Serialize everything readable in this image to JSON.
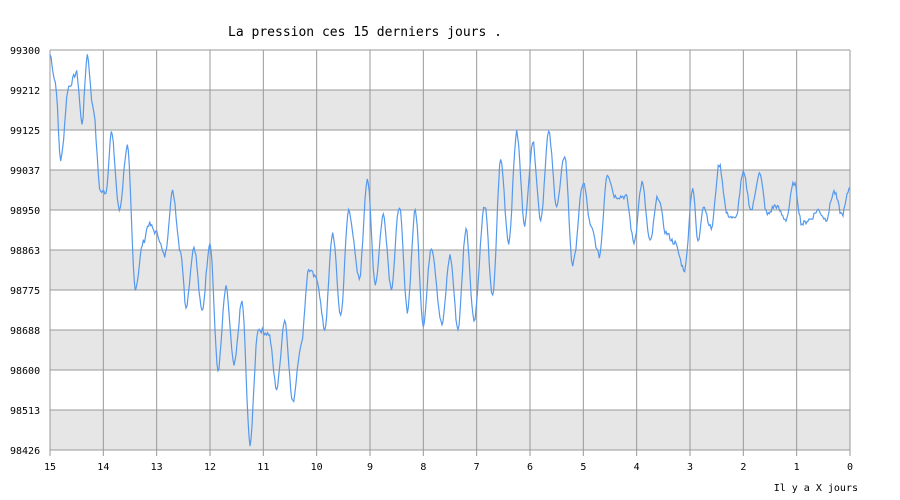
{
  "chart_data": {
    "type": "line",
    "title": "La pression ces 15 derniers jours .",
    "xlabel": "Il y a X jours",
    "ylabel": "",
    "xlim": [
      15,
      0
    ],
    "ylim": [
      98426,
      99300
    ],
    "x_ticks": [
      "15",
      "14",
      "13",
      "12",
      "11",
      "10",
      "9",
      "8",
      "7",
      "6",
      "5",
      "4",
      "3",
      "2",
      "1",
      "0"
    ],
    "y_ticks": [
      "99300",
      "99212",
      "99125",
      "99037",
      "98950",
      "98863",
      "98775",
      "98688",
      "98600",
      "98513",
      "98426"
    ],
    "grid": true,
    "line_color": "#5599ee",
    "band_color": "#e6e6e6",
    "series": [
      {
        "name": "",
        "x": [
          15.0,
          14.9,
          14.8,
          14.65,
          14.5,
          14.4,
          14.3,
          14.2,
          14.05,
          13.95,
          13.85,
          13.7,
          13.55,
          13.4,
          13.25,
          13.15,
          13.0,
          12.85,
          12.7,
          12.55,
          12.45,
          12.3,
          12.15,
          12.0,
          11.85,
          11.7,
          11.55,
          11.4,
          11.25,
          11.1,
          10.9,
          10.75,
          10.6,
          10.45,
          10.3,
          10.15,
          10.0,
          9.85,
          9.7,
          9.55,
          9.4,
          9.2,
          9.05,
          8.9,
          8.75,
          8.6,
          8.45,
          8.3,
          8.15,
          8.0,
          7.85,
          7.65,
          7.5,
          7.35,
          7.2,
          7.05,
          6.85,
          6.7,
          6.55,
          6.4,
          6.25,
          6.1,
          5.95,
          5.8,
          5.65,
          5.5,
          5.35,
          5.2,
          5.0,
          4.85,
          4.7,
          4.55,
          4.4,
          4.2,
          4.05,
          3.9,
          3.75,
          3.6,
          3.45,
          3.3,
          3.1,
          2.95,
          2.85,
          2.75,
          2.6,
          2.45,
          2.3,
          2.15,
          2.0,
          1.85,
          1.7,
          1.55,
          1.4,
          1.2,
          1.05,
          0.9,
          0.75,
          0.6,
          0.45,
          0.3,
          0.15,
          0.0
        ],
        "values": [
          99290,
          99230,
          99060,
          99220,
          99250,
          99140,
          99290,
          99180,
          98990,
          98990,
          99120,
          98950,
          99090,
          98780,
          98880,
          98920,
          98900,
          98850,
          98990,
          98860,
          98740,
          98870,
          98730,
          98880,
          98600,
          98780,
          98610,
          98750,
          98440,
          98690,
          98680,
          98560,
          98710,
          98530,
          98650,
          98820,
          98800,
          98690,
          98900,
          98720,
          98950,
          98800,
          99020,
          98790,
          98940,
          98780,
          98960,
          98730,
          98950,
          98700,
          98870,
          98700,
          98850,
          98690,
          98910,
          98710,
          98960,
          98760,
          99060,
          98880,
          99120,
          98920,
          99100,
          98930,
          99120,
          98960,
          99070,
          98830,
          99010,
          98910,
          98850,
          99030,
          98980,
          98980,
          98880,
          99010,
          98880,
          98980,
          98900,
          98880,
          98820,
          99000,
          98880,
          98960,
          98910,
          99050,
          98940,
          98930,
          99030,
          98950,
          99030,
          98940,
          98960,
          98930,
          99010,
          98920,
          98930,
          98950,
          98930,
          98990,
          98940,
          99000
        ]
      }
    ]
  }
}
